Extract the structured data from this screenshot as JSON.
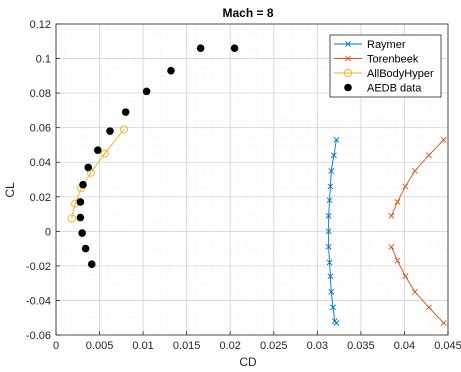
{
  "chart_data": {
    "type": "scatter",
    "title": "Mach = 8",
    "xlabel": "CD",
    "ylabel": "CL",
    "xlim": [
      0,
      0.045
    ],
    "ylim": [
      -0.06,
      0.12
    ],
    "xticks": [
      "0",
      "0.005",
      "0.01",
      "0.015",
      "0.02",
      "0.025",
      "0.03",
      "0.035",
      "0.04",
      "0.045"
    ],
    "yticks": [
      "-0.06",
      "-0.04",
      "-0.02",
      "0",
      "0.02",
      "0.04",
      "0.06",
      "0.08",
      "0.1",
      "0.12"
    ],
    "grid": true,
    "legend_position": "top-right",
    "series": [
      {
        "name": "Raymer",
        "style": "line-x",
        "color": "#0072BD",
        "segments": [
          {
            "x": [
              0.0322,
              0.0319,
              0.0316,
              0.0315,
              0.0314,
              0.0313,
              0.0313,
              0.0313,
              0.0314,
              0.0315,
              0.0316,
              0.0318,
              0.032,
              0.0322
            ],
            "y": [
              0.053,
              0.044,
              0.035,
              0.026,
              0.018,
              0.009,
              0.0,
              -0.009,
              -0.018,
              -0.026,
              -0.035,
              -0.044,
              -0.052,
              -0.053
            ]
          }
        ]
      },
      {
        "name": "Torenbeek",
        "style": "line-x",
        "color": "#D95319",
        "segments": [
          {
            "x": [
              0.0385,
              0.0392,
              0.0401,
              0.0412,
              0.0428,
              0.0445
            ],
            "y": [
              0.009,
              0.017,
              0.026,
              0.035,
              0.044,
              0.053
            ]
          },
          {
            "x": [
              0.0385,
              0.0392,
              0.0401,
              0.0412,
              0.0428,
              0.0445
            ],
            "y": [
              -0.009,
              -0.017,
              -0.026,
              -0.035,
              -0.044,
              -0.053
            ]
          }
        ]
      },
      {
        "name": "AllBodyHyper",
        "style": "line-o",
        "color": "#EDB120",
        "segments": [
          {
            "x": [
              0.0018,
              0.0022,
              0.0029,
              0.004,
              0.0056,
              0.0078
            ],
            "y": [
              0.0075,
              0.016,
              0.025,
              0.034,
              0.045,
              0.059
            ]
          }
        ]
      },
      {
        "name": "AEDB data",
        "style": "dots",
        "color": "#000000",
        "segments": [
          {
            "x": [
              0.0041,
              0.0034,
              0.003,
              0.0028,
              0.0028,
              0.0031,
              0.0037,
              0.0048,
              0.0062,
              0.008,
              0.0104,
              0.0132,
              0.0166,
              0.0205
            ],
            "y": [
              -0.019,
              -0.01,
              -0.001,
              0.008,
              0.017,
              0.027,
              0.037,
              0.047,
              0.058,
              0.069,
              0.081,
              0.093,
              0.106,
              0.106
            ]
          }
        ]
      }
    ]
  }
}
